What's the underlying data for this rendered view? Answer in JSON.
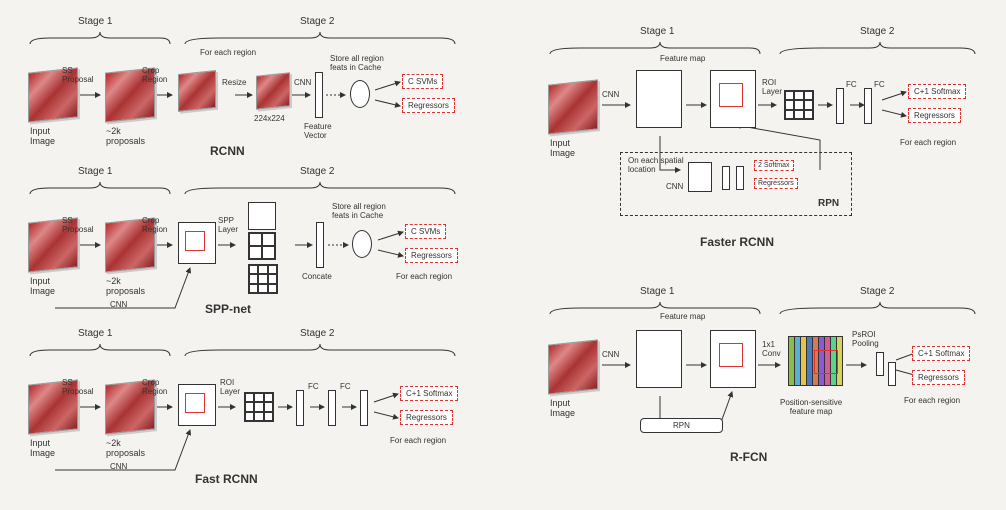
{
  "background_color": "#f5f3ef",
  "stage_labels": {
    "s1": "Stage 1",
    "s2": "Stage 2"
  },
  "common": {
    "input_image": "Input\nImage",
    "for_each": "For each region",
    "cnn": "CNN"
  },
  "rcnn": {
    "title": "RCNN",
    "ss": "SS\nProposal",
    "prop": "~2k\nproposals",
    "crop": "Crop\nRegion",
    "resize": "Resize",
    "size": "224x224",
    "featvec": "Feature\nVector",
    "cache": "Store all region\nfeats in Cache",
    "out1": "C SVMs",
    "out2": "Regressors"
  },
  "spp": {
    "title": "SPP-net",
    "ss": "SS\nProposal",
    "prop": "~2k\nproposals",
    "crop": "Crop\nRegion",
    "spplayer": "SPP\nLayer",
    "concat": "Concate",
    "cache": "Store all region\nfeats in Cache",
    "out1": "C SVMs",
    "out2": "Regressors",
    "cnn_arrow": "CNN"
  },
  "fast": {
    "title": "Fast RCNN",
    "ss": "SS\nProposal",
    "prop": "~2k\nproposals",
    "crop": "Crop\nRegion",
    "roi": "ROI\nLayer",
    "fc": "FC",
    "out1": "C+1 Softmax",
    "out2": "Regressors",
    "cnn_arrow": "CNN"
  },
  "faster": {
    "title": "Faster RCNN",
    "featmap": "Feature map",
    "roi": "ROI\nLayer",
    "fc": "FC",
    "rpn_title": "RPN",
    "rpn_note": "On each spatial\nlocation",
    "rpn_cnn": "CNN",
    "rpn_out1": "2 Softmax",
    "rpn_out2": "Regressors",
    "out1": "C+1 Softmax",
    "out2": "Regressors"
  },
  "rfcn": {
    "title": "R-FCN",
    "featmap": "Feature map",
    "conv": "1x1\nConv",
    "rpn": "RPN",
    "psmap": "Position-sensitive\nfeature map",
    "psroi": "PsROI\nPooling",
    "out1": "C+1 Softmax",
    "out2": "Regressors",
    "ps_colors": [
      "#8bbf4a",
      "#5ab0d4",
      "#e6c34a",
      "#4a7bbf",
      "#d47a5a",
      "#8a5ad4",
      "#d45a9a",
      "#5ad48a",
      "#d4d45a"
    ]
  },
  "styling": {
    "box_border": "#333",
    "dash_red": "#d33",
    "title_font": 12,
    "label_font": 9
  }
}
